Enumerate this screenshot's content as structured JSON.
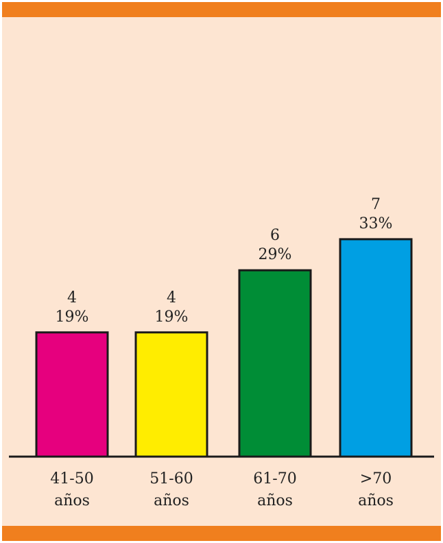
{
  "chart_data": {
    "type": "bar",
    "categories": [
      [
        "41-50",
        "años"
      ],
      [
        "51-60",
        "años"
      ],
      [
        "61-70",
        "años"
      ],
      [
        ">70",
        "años"
      ]
    ],
    "values": [
      4,
      4,
      6,
      7
    ],
    "percent_labels": [
      "19%",
      "19%",
      "29%",
      "33%"
    ],
    "colors": [
      "#e6007e",
      "#ffed00",
      "#008d36",
      "#009fe3"
    ],
    "ylim": [
      0,
      8
    ],
    "title": "",
    "xlabel": "",
    "ylabel": "",
    "grid": false,
    "legend": "none"
  },
  "colors": {
    "background": "#fde5d2",
    "band": "#f07f1e",
    "axis": "#1a1a1a"
  }
}
